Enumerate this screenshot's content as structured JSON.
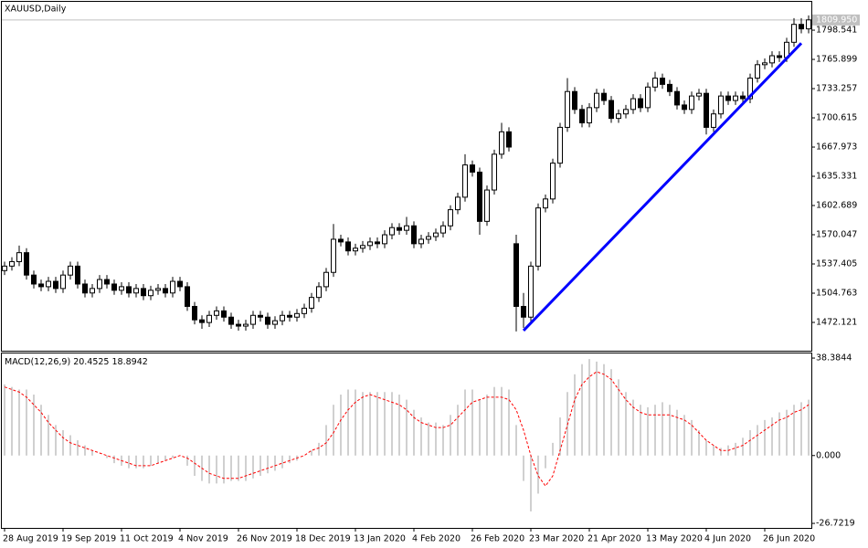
{
  "chart_data": [
    {
      "type": "candlestick",
      "title": "XAUUSD,Daily",
      "categories": [
        "28 Aug 2019",
        null,
        null,
        null,
        null,
        null,
        null,
        null,
        "19 Sep 2019",
        null,
        null,
        null,
        null,
        null,
        null,
        null,
        "11 Oct 2019",
        null,
        null,
        null,
        null,
        null,
        null,
        null,
        "4 Nov 2019",
        null,
        null,
        null,
        null,
        null,
        null,
        null,
        "26 Nov 2019",
        null,
        null,
        null,
        null,
        null,
        null,
        null,
        "18 Dec 2019",
        null,
        null,
        null,
        null,
        null,
        null,
        null,
        "13 Jan 2020",
        null,
        null,
        null,
        null,
        null,
        null,
        null,
        "4 Feb 2020",
        null,
        null,
        null,
        null,
        null,
        null,
        null,
        "26 Feb 2020",
        null,
        null,
        null,
        null,
        null,
        null,
        null,
        "23 Mar 2020",
        null,
        null,
        null,
        null,
        null,
        null,
        null,
        "21 Apr 2020",
        null,
        null,
        null,
        null,
        null,
        null,
        null,
        "13 May 2020",
        null,
        null,
        null,
        null,
        null,
        null,
        null,
        "4 Jun 2020",
        null,
        null,
        null,
        null,
        null,
        null,
        null,
        "26 Jun 2020",
        null,
        null,
        null,
        null,
        null,
        null
      ],
      "open": [
        1530,
        1535,
        1540,
        1550,
        1525,
        1515,
        1512,
        1518,
        1510,
        1525,
        1535,
        1515,
        1505,
        1510,
        1520,
        1515,
        1508,
        1512,
        1505,
        1510,
        1502,
        1508,
        1510,
        1505,
        1518,
        1512,
        1490,
        1475,
        1472,
        1480,
        1485,
        1478,
        1470,
        1468,
        1470,
        1480,
        1478,
        1470,
        1474,
        1480,
        1478,
        1482,
        1488,
        1500,
        1512,
        1528,
        1565,
        1562,
        1552,
        1555,
        1558,
        1562,
        1560,
        1570,
        1578,
        1575,
        1580,
        1560,
        1565,
        1568,
        1572,
        1580,
        1598,
        1612,
        1648,
        1640,
        1585,
        1620,
        1660,
        1685,
        1560,
        1490,
        1478,
        1535,
        1600,
        1610,
        1650,
        1690,
        1730,
        1710,
        1695,
        1712,
        1728,
        1720,
        1700,
        1705,
        1710,
        1722,
        1712,
        1735,
        1745,
        1738,
        1730,
        1715,
        1710,
        1725,
        1728,
        1690,
        1705,
        1725,
        1720,
        1725,
        1722,
        1745,
        1760,
        1762,
        1770,
        1768,
        1785,
        1805,
        1800
      ],
      "high": [
        1540,
        1545,
        1558,
        1555,
        1530,
        1520,
        1523,
        1523,
        1530,
        1540,
        1540,
        1520,
        1515,
        1525,
        1525,
        1520,
        1517,
        1517,
        1515,
        1515,
        1513,
        1515,
        1515,
        1523,
        1523,
        1517,
        1495,
        1480,
        1485,
        1490,
        1490,
        1483,
        1475,
        1475,
        1485,
        1485,
        1483,
        1479,
        1485,
        1485,
        1487,
        1493,
        1505,
        1517,
        1533,
        1582,
        1570,
        1567,
        1560,
        1563,
        1567,
        1567,
        1575,
        1583,
        1583,
        1590,
        1585,
        1570,
        1573,
        1577,
        1585,
        1603,
        1617,
        1660,
        1653,
        1645,
        1625,
        1665,
        1695,
        1690,
        1570,
        1505,
        1540,
        1605,
        1615,
        1655,
        1695,
        1745,
        1735,
        1715,
        1717,
        1733,
        1733,
        1725,
        1710,
        1715,
        1727,
        1727,
        1740,
        1752,
        1750,
        1743,
        1735,
        1720,
        1730,
        1733,
        1733,
        1710,
        1730,
        1730,
        1730,
        1730,
        1750,
        1765,
        1767,
        1775,
        1775,
        1790,
        1812,
        1812,
        1815
      ],
      "low": [
        1525,
        1530,
        1535,
        1520,
        1510,
        1507,
        1507,
        1505,
        1505,
        1520,
        1510,
        1500,
        1500,
        1505,
        1510,
        1503,
        1503,
        1500,
        1500,
        1497,
        1497,
        1503,
        1500,
        1500,
        1507,
        1485,
        1470,
        1465,
        1467,
        1475,
        1473,
        1465,
        1463,
        1463,
        1465,
        1473,
        1465,
        1465,
        1469,
        1473,
        1473,
        1477,
        1483,
        1495,
        1507,
        1523,
        1557,
        1547,
        1547,
        1550,
        1553,
        1555,
        1555,
        1565,
        1570,
        1570,
        1555,
        1555,
        1560,
        1563,
        1567,
        1575,
        1593,
        1607,
        1635,
        1570,
        1580,
        1615,
        1655,
        1663,
        1462,
        1466,
        1473,
        1530,
        1595,
        1605,
        1645,
        1685,
        1705,
        1690,
        1690,
        1707,
        1715,
        1695,
        1695,
        1700,
        1705,
        1707,
        1707,
        1730,
        1733,
        1725,
        1710,
        1705,
        1705,
        1720,
        1682,
        1685,
        1700,
        1715,
        1715,
        1717,
        1717,
        1740,
        1755,
        1757,
        1763,
        1763,
        1780,
        1795,
        1795
      ],
      "close": [
        1535,
        1540,
        1550,
        1525,
        1515,
        1512,
        1518,
        1510,
        1525,
        1535,
        1515,
        1505,
        1510,
        1520,
        1515,
        1508,
        1512,
        1505,
        1510,
        1502,
        1508,
        1510,
        1505,
        1518,
        1512,
        1490,
        1475,
        1472,
        1480,
        1485,
        1478,
        1470,
        1468,
        1470,
        1480,
        1478,
        1470,
        1474,
        1480,
        1478,
        1482,
        1488,
        1500,
        1512,
        1528,
        1565,
        1562,
        1552,
        1555,
        1558,
        1562,
        1560,
        1570,
        1578,
        1575,
        1580,
        1560,
        1565,
        1568,
        1572,
        1580,
        1598,
        1612,
        1648,
        1640,
        1585,
        1620,
        1660,
        1685,
        1668,
        1490,
        1478,
        1535,
        1600,
        1610,
        1650,
        1690,
        1730,
        1710,
        1695,
        1712,
        1728,
        1720,
        1700,
        1705,
        1710,
        1722,
        1712,
        1735,
        1745,
        1738,
        1730,
        1715,
        1710,
        1725,
        1728,
        1690,
        1705,
        1725,
        1720,
        1725,
        1722,
        1745,
        1760,
        1762,
        1770,
        1768,
        1785,
        1805,
        1800,
        1810
      ],
      "up_color": "#ffffff",
      "down_color": "#000000",
      "ylim": [
        1440.5,
        1830.2
      ],
      "yticks": [
        1798.541,
        1765.899,
        1733.257,
        1700.615,
        1667.973,
        1635.331,
        1602.689,
        1570.047,
        1537.405,
        1504.763,
        1472.121
      ],
      "last_price": {
        "value": 1809.95,
        "label": "1809.950"
      },
      "trendline": {
        "color": "#0000ff",
        "x": [
          71,
          109
        ],
        "values": [
          1463,
          1784
        ]
      }
    },
    {
      "type": "macd",
      "title": "MACD(12,26,9)",
      "current_values": [
        20.4525,
        18.8942
      ],
      "histogram": {
        "color": "#c0c0c0",
        "values": [
          28,
          27,
          26,
          26,
          24,
          20,
          16,
          12,
          10,
          8,
          6,
          4,
          2,
          0,
          -1,
          -3,
          -4,
          -5,
          -5,
          -5,
          -4,
          -3,
          -2,
          -1,
          0,
          -4,
          -8,
          -10,
          -11,
          -11,
          -11,
          -10,
          -10,
          -10,
          -9,
          -8,
          -7,
          -6,
          -5,
          -3,
          -2,
          0,
          2,
          5,
          12,
          20,
          24,
          26,
          26,
          25,
          25,
          25,
          25,
          25,
          24,
          22,
          18,
          15,
          13,
          13,
          12,
          16,
          20,
          26,
          26,
          22,
          24,
          27,
          27,
          26,
          12,
          -10,
          -22,
          -15,
          -5,
          5,
          15,
          25,
          32,
          36,
          38,
          37,
          36,
          34,
          30,
          25,
          22,
          20,
          19,
          20,
          21,
          20,
          18,
          16,
          14,
          10,
          6,
          4,
          3,
          4,
          5,
          7,
          10,
          12,
          14,
          15,
          17,
          18,
          20,
          21,
          22
        ]
      },
      "signal": {
        "color": "#ff0000",
        "values": [
          27,
          26,
          25,
          23,
          20,
          17,
          13,
          10,
          7,
          5,
          4,
          3,
          2,
          1,
          0,
          -1,
          -2,
          -3,
          -4,
          -4,
          -4,
          -3,
          -2,
          -1,
          0,
          -1,
          -3,
          -5,
          -7,
          -8,
          -9,
          -9,
          -9,
          -8,
          -7,
          -6,
          -5,
          -4,
          -3,
          -2,
          -1,
          0,
          2,
          3,
          5,
          9,
          14,
          18,
          21,
          23,
          24,
          23,
          22,
          21,
          20,
          18,
          15,
          13,
          12,
          11,
          11,
          12,
          15,
          18,
          21,
          22,
          23,
          23,
          23,
          22,
          18,
          10,
          0,
          -8,
          -12,
          -8,
          2,
          12,
          22,
          28,
          31,
          33,
          32,
          30,
          26,
          22,
          19,
          17,
          16,
          16,
          16,
          16,
          15,
          14,
          12,
          9,
          6,
          4,
          2,
          2,
          3,
          4,
          6,
          8,
          10,
          12,
          14,
          15,
          17,
          18,
          20
        ]
      },
      "ylim": [
        -28.5,
        40.2
      ],
      "yticks": [
        38.3844,
        {
          "value": 0,
          "label": "0.000"
        },
        -26.7219
      ]
    }
  ]
}
